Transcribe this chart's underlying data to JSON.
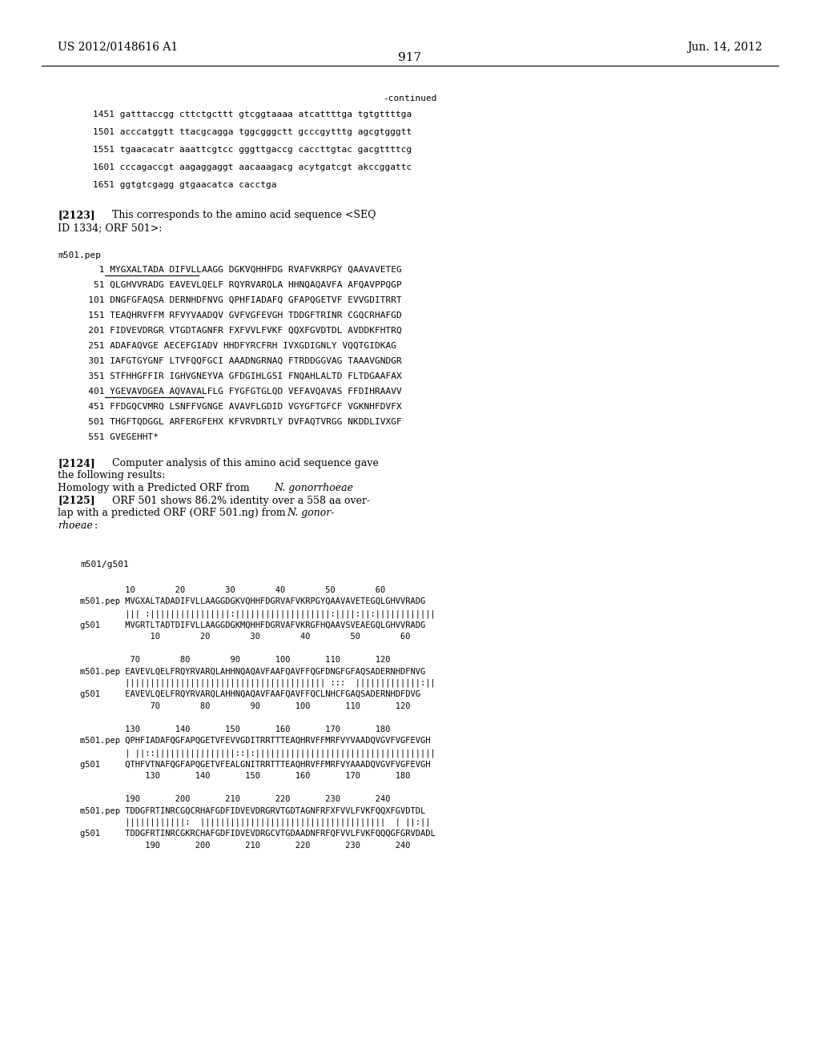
{
  "header_left": "US 2012/0148616 A1",
  "header_right": "Jun. 14, 2012",
  "page_number": "917",
  "bg": "#ffffff",
  "fg": "#000000",
  "dna_lines": [
    "1451 gatttaccgg cttctgcttt gtcggtaaaa atcattttga tgtgttttga",
    "1501 acccatggtt ttacgcagga tggcgggctt gcccgytttg agcgtgggtt",
    "1551 tgaacacatr aaattcgtcc gggttgaccg caccttgtac gacgttttcg",
    "1601 cccagaccgt aagaggaggt aacaaagacg acytgatcgt akccggattc",
    "1651 ggtgtcgagg gtgaacatca cacctga"
  ],
  "aa_lines": [
    "     1 MYGXALTADA DIFVLLAAGG DGKVQHHFDG RVAFVKRPGY QAAVAVETEG",
    "    51 QLGHVVRADG EAVEVLQELF RQYRVARQLA HHNQAQAVFA AFQAVPPQGP",
    "   101 DNGFGFAQSA DERNHDFNVG QPHFIADAFQ GFAPQGETVF EVVGDITRRT",
    "   151 TEAQHRVFFM RFVYVAADQV GVFVGFEVGH TDDGFTRINR CGQCRHAFGD",
    "   201 FIDVEVDRGR VTGDTAGNFR FXFVVLFVKF QQXFGVDTDL AVDDKFHTRQ",
    "   251 ADAFAQVGE AECEFGIADV HHDFYRCFRH IVXGDIGNLY VQQTGIDKAG",
    "   301 IAFGTGYGNF LTVFQQFGCI AAADNGRNAQ FTRDDGGVAG TAAAVGNDGR",
    "   351 STFHHGFFIR IGHVGNEYVA GFDGIHLGSI FNQAHLALTD FLTDGAAFAX",
    "   401 YGEVAVDGEA AQVAVALFLG FYGFGTGLQD VEFAVQAVAS FFDIHRAAVV",
    "   451 FFDGQCVMRQ LSNFFVGNGE AVAVFLGDID VGYGFTGFCF VGKNHFDVFX",
    "   501 THGFTQDGGL ARFERGFEHX KFVRVDRTLY DVFAQTVRGG NKDDLIVXGF",
    "   551 GVEGEHHT*"
  ],
  "align_block": [
    "         10        20        30        40        50        60",
    "m501.pep MVGXALTADADIFVLLAAGGDGKVQHHFDGRVAFVKRPGYQAAVAVETEGQLGHVVRADG",
    "         ||| :||||||||||||||||:|||||||||||||||||||:||||:||:||||||||||||",
    "g501     MVGRTLTADTDIFVLLAAGGDGKMQHHFDGRVAFVKRGFHQAAVSVEAEGQLGHVVRADG",
    "              10        20        30        40        50        60",
    "",
    "          70        80        90       100       110       120",
    "m501.pep EAVEVLQELFRQYRVARQLAHHNQAQAVFAAFQAVFFQGFDNGFGFAQSADERNHDFNVG",
    "         |||||||||||||||||||||||||||||||||||||||| :::  |||||||||||||:||",
    "g501     EAVEVLQELFRQYRVARQLAHHNQAQAVFAAFQAVFFQCLNHCFGAQSADERNHDFDVG",
    "              70        80        90       100       110       120",
    "",
    "         130       140       150       160       170       180",
    "m501.pep QPHFIADAFQGFAPQGETVFEVVGDITRRTTTEAQHRVFFMRFVYVAADQVGVFVGFEVGH",
    "         | ||::||||||||||||||||::|:||||||||||||||||||||||||||||||||||||",
    "g501     QTHFVTNAFQGFAPQGETVFEALGNITRRTTTEAQHRVFFMRFVYAAADQVGVFVGFEVGH",
    "             130       140       150       160       170       180",
    "",
    "         190       200       210       220       230       240",
    "m501.pep TDDGFRTINRCGQCRHAFGDFIDVEVDRGRVTGDTAGNFRFXFVVLFVKFQQXFGVDTDL",
    "         ||||||||||||:  |||||||||||||||||||||||||||||||||||||  | ||:||",
    "g501     TDDGFRTINRCGKRCHAFGDFIDVEVDRGCVTGDAADNFRFQFVVLFVKFQQQGFGRVDADL",
    "             190       200       210       220       230       240"
  ]
}
